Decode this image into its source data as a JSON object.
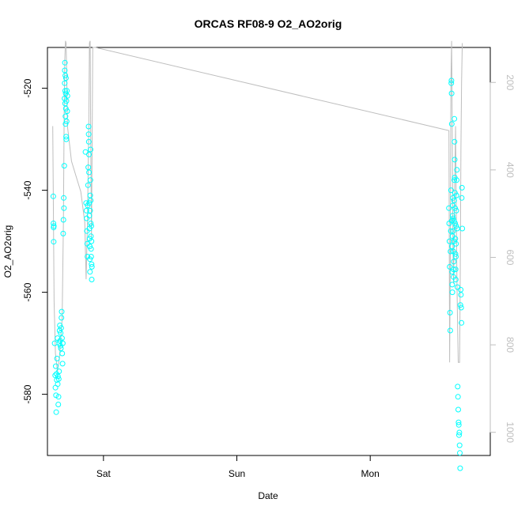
{
  "chart_data": {
    "type": "scatter",
    "title": "ORCAS RF08-9 O2_AO2orig",
    "xlabel": "Date",
    "ylabel": "O2_AO2orig",
    "x_ticks": [
      "Sat",
      "Sun",
      "Mon"
    ],
    "y_ticks": [
      -520,
      -540,
      -560,
      -580
    ],
    "y_right_ticks": [
      200,
      400,
      600,
      800,
      1000
    ],
    "ylim": [
      -592,
      -512
    ],
    "y_right_lim": [
      1053,
      120
    ],
    "x_unit": "day index (Sat = 0)",
    "xlim": [
      -0.42,
      2.9
    ],
    "colors": {
      "points": "#00ffff",
      "pressure_line": "#bebebe",
      "axes": "#000000"
    },
    "series": [
      {
        "name": "O2_AO2orig",
        "style": "points",
        "points": [
          [
            -0.376,
            -541.2
          ],
          [
            -0.375,
            -546.5
          ],
          [
            -0.374,
            -547.3
          ],
          [
            -0.373,
            -550.1
          ],
          [
            -0.372,
            -547.0
          ],
          [
            -0.366,
            -570.0
          ],
          [
            -0.362,
            -576.3
          ],
          [
            -0.36,
            -578.7
          ],
          [
            -0.358,
            -574.5
          ],
          [
            -0.356,
            -580.2
          ],
          [
            -0.354,
            -583.5
          ],
          [
            -0.352,
            -576.0
          ],
          [
            -0.35,
            -577.2
          ],
          [
            -0.348,
            -573.0
          ],
          [
            -0.345,
            -569.0
          ],
          [
            -0.343,
            -578.0
          ],
          [
            -0.341,
            -576.5
          ],
          [
            -0.339,
            -582.0
          ],
          [
            -0.337,
            -580.5
          ],
          [
            -0.335,
            -577.0
          ],
          [
            -0.333,
            -575.5
          ],
          [
            -0.331,
            -570.0
          ],
          [
            -0.329,
            -567.5
          ],
          [
            -0.327,
            -566.5
          ],
          [
            -0.325,
            -569.5
          ],
          [
            -0.323,
            -570.5
          ],
          [
            -0.321,
            -568.0
          ],
          [
            -0.319,
            -571.0
          ],
          [
            -0.317,
            -567.0
          ],
          [
            -0.315,
            -565.0
          ],
          [
            -0.313,
            -563.8
          ],
          [
            -0.311,
            -569.0
          ],
          [
            -0.309,
            -572.0
          ],
          [
            -0.307,
            -574.0
          ],
          [
            -0.305,
            -570.0
          ],
          [
            -0.302,
            -548.5
          ],
          [
            -0.3,
            -545.8
          ],
          [
            -0.298,
            -541.5
          ],
          [
            -0.296,
            -543.5
          ],
          [
            -0.294,
            -535.2
          ],
          [
            -0.292,
            -522.0
          ],
          [
            -0.291,
            -519.0
          ],
          [
            -0.29,
            -516.5
          ],
          [
            -0.289,
            -515.0
          ],
          [
            -0.288,
            -523.0
          ],
          [
            -0.287,
            -520.5
          ],
          [
            -0.286,
            -517.5
          ],
          [
            -0.285,
            -525.5
          ],
          [
            -0.284,
            -527.0
          ],
          [
            -0.283,
            -521.0
          ],
          [
            -0.282,
            -524.0
          ],
          [
            -0.281,
            -518.0
          ],
          [
            -0.28,
            -529.5
          ],
          [
            -0.279,
            -530.0
          ],
          [
            -0.278,
            -522.5
          ],
          [
            -0.276,
            -526.5
          ],
          [
            -0.274,
            -520.5
          ],
          [
            -0.272,
            -524.5
          ],
          [
            -0.27,
            -521.5
          ],
          [
            -0.135,
            -532.5
          ],
          [
            -0.13,
            -542.5
          ],
          [
            -0.128,
            -544.0
          ],
          [
            -0.126,
            -545.5
          ],
          [
            -0.124,
            -548.0
          ],
          [
            -0.122,
            -550.5
          ],
          [
            -0.12,
            -553.0
          ],
          [
            -0.118,
            -543.0
          ],
          [
            -0.116,
            -539.0
          ],
          [
            -0.114,
            -535.5
          ],
          [
            -0.112,
            -527.5
          ],
          [
            -0.111,
            -529.0
          ],
          [
            -0.11,
            -530.5
          ],
          [
            -0.109,
            -533.0
          ],
          [
            -0.108,
            -536.5
          ],
          [
            -0.107,
            -542.5
          ],
          [
            -0.106,
            -545.0
          ],
          [
            -0.105,
            -547.5
          ],
          [
            -0.104,
            -549.5
          ],
          [
            -0.103,
            -551.0
          ],
          [
            -0.102,
            -553.5
          ],
          [
            -0.101,
            -556.0
          ],
          [
            -0.1,
            -544.0
          ],
          [
            -0.099,
            -541.0
          ],
          [
            -0.098,
            -538.0
          ],
          [
            -0.097,
            -532.0
          ],
          [
            -0.096,
            -542.0
          ],
          [
            -0.095,
            -546.5
          ],
          [
            -0.094,
            -549.0
          ],
          [
            -0.093,
            -551.5
          ],
          [
            -0.092,
            -553.0
          ],
          [
            -0.091,
            -547.0
          ],
          [
            -0.09,
            -550.0
          ],
          [
            -0.089,
            -554.5
          ],
          [
            -0.088,
            -557.5
          ],
          [
            -0.087,
            -555.0
          ],
          [
            2.59,
            -543.5
          ],
          [
            2.592,
            -546.5
          ],
          [
            2.594,
            -550.0
          ],
          [
            2.596,
            -555.0
          ],
          [
            2.598,
            -564.0
          ],
          [
            2.6,
            -567.5
          ],
          [
            2.602,
            -552.0
          ],
          [
            2.604,
            -548.0
          ],
          [
            2.606,
            -540.0
          ],
          [
            2.608,
            -519.0
          ],
          [
            2.609,
            -518.5
          ],
          [
            2.61,
            -521.0
          ],
          [
            2.611,
            -527.0
          ],
          [
            2.612,
            -546.0
          ],
          [
            2.613,
            -551.0
          ],
          [
            2.614,
            -556.0
          ],
          [
            2.615,
            -558.5
          ],
          [
            2.616,
            -560.0
          ],
          [
            2.617,
            -549.0
          ],
          [
            2.618,
            -545.0
          ],
          [
            2.619,
            -543.0
          ],
          [
            2.62,
            -541.5
          ],
          [
            2.621,
            -545.5
          ],
          [
            2.622,
            -548.0
          ],
          [
            2.623,
            -552.0
          ],
          [
            2.624,
            -555.5
          ],
          [
            2.625,
            -557.0
          ],
          [
            2.626,
            -554.0
          ],
          [
            2.627,
            -550.0
          ],
          [
            2.628,
            -546.0
          ],
          [
            2.629,
            -542.0
          ],
          [
            2.63,
            -538.0
          ],
          [
            2.631,
            -526.0
          ],
          [
            2.632,
            -530.5
          ],
          [
            2.633,
            -534.0
          ],
          [
            2.634,
            -537.5
          ],
          [
            2.635,
            -540.5
          ],
          [
            2.636,
            -543.5
          ],
          [
            2.637,
            -546.5
          ],
          [
            2.638,
            -549.5
          ],
          [
            2.639,
            -552.5
          ],
          [
            2.64,
            -555.5
          ],
          [
            2.641,
            -557.5
          ],
          [
            2.642,
            -553.0
          ],
          [
            2.643,
            -550.5
          ],
          [
            2.644,
            -547.0
          ],
          [
            2.645,
            -544.0
          ],
          [
            2.646,
            -541.0
          ],
          [
            2.648,
            -538.0
          ],
          [
            2.65,
            -536.0
          ],
          [
            2.652,
            -547.5
          ],
          [
            2.654,
            -559.0
          ],
          [
            2.656,
            -578.5
          ],
          [
            2.658,
            -580.5
          ],
          [
            2.66,
            -583.0
          ],
          [
            2.662,
            -585.5
          ],
          [
            2.664,
            -586.0
          ],
          [
            2.666,
            -588.0
          ],
          [
            2.668,
            -587.5
          ],
          [
            2.67,
            -590.0
          ],
          [
            2.672,
            -591.5
          ],
          [
            2.674,
            -594.5
          ],
          [
            2.676,
            -562.5
          ],
          [
            2.678,
            -559.5
          ],
          [
            2.68,
            -560.5
          ],
          [
            2.682,
            -563.0
          ],
          [
            2.684,
            -566.0
          ],
          [
            2.686,
            -541.5
          ],
          [
            2.688,
            -539.5
          ],
          [
            2.69,
            -547.5
          ]
        ]
      },
      {
        "name": "pressure",
        "style": "line",
        "axis": "right",
        "points": [
          [
            -0.38,
            300
          ],
          [
            -0.37,
            700
          ],
          [
            -0.36,
            820
          ],
          [
            -0.345,
            860
          ],
          [
            -0.33,
            830
          ],
          [
            -0.31,
            740
          ],
          [
            -0.3,
            520
          ],
          [
            -0.295,
            280
          ],
          [
            -0.29,
            150
          ],
          [
            -0.285,
            105
          ],
          [
            -0.28,
            110
          ],
          [
            -0.275,
            200
          ],
          [
            -0.27,
            300
          ],
          [
            -0.24,
            380
          ],
          [
            -0.2,
            420
          ],
          [
            -0.17,
            450
          ],
          [
            -0.14,
            520
          ],
          [
            -0.13,
            650
          ],
          [
            -0.12,
            520
          ],
          [
            -0.11,
            300
          ],
          [
            -0.105,
            110
          ],
          [
            -0.1,
            105
          ],
          [
            -0.095,
            350
          ],
          [
            -0.09,
            560
          ],
          [
            -0.08,
            120
          ],
          [
            -0.06,
            120
          ],
          [
            2.59,
            310
          ],
          [
            2.595,
            840
          ],
          [
            2.6,
            620
          ],
          [
            2.605,
            200
          ],
          [
            2.61,
            105
          ],
          [
            2.615,
            300
          ],
          [
            2.62,
            580
          ],
          [
            2.625,
            660
          ],
          [
            2.63,
            500
          ],
          [
            2.635,
            400
          ],
          [
            2.64,
            300
          ],
          [
            2.645,
            500
          ],
          [
            2.65,
            650
          ],
          [
            2.655,
            760
          ],
          [
            2.66,
            840
          ],
          [
            2.67,
            840
          ],
          [
            2.675,
            650
          ],
          [
            2.68,
            350
          ],
          [
            2.685,
            200
          ],
          [
            2.69,
            110
          ]
        ]
      }
    ]
  }
}
